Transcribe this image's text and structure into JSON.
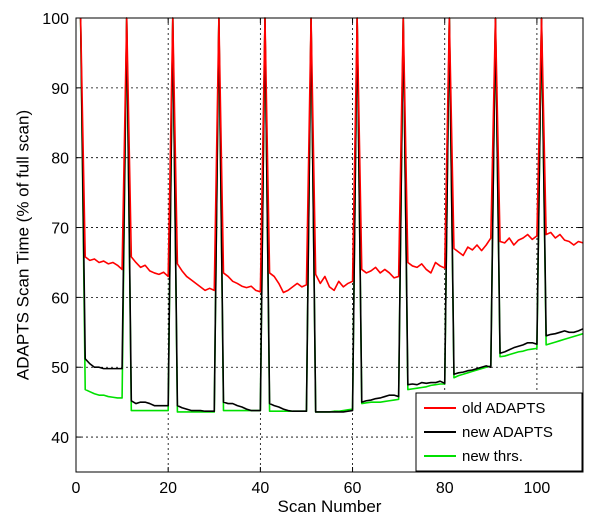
{
  "chart_data": {
    "type": "line",
    "xlabel": "Scan Number",
    "ylabel": "ADAPTS Scan Time (% of full scan)",
    "xlim": [
      0,
      110
    ],
    "ylim": [
      35,
      100
    ],
    "xticks": [
      0,
      20,
      40,
      60,
      80,
      100
    ],
    "yticks": [
      40,
      50,
      60,
      70,
      80,
      90,
      100
    ],
    "grid": true,
    "legend_position": "bottom-right",
    "full_scan_positions": [
      1,
      11,
      21,
      31,
      41,
      51,
      61,
      71,
      81,
      91,
      101
    ],
    "series": [
      {
        "name": "old ADAPTS",
        "color": "#ff0000",
        "x": [
          1,
          2,
          3,
          4,
          5,
          6,
          7,
          8,
          9,
          10,
          11,
          12,
          13,
          14,
          15,
          16,
          17,
          18,
          19,
          20,
          21,
          22,
          23,
          24,
          25,
          26,
          27,
          28,
          29,
          30,
          31,
          32,
          33,
          34,
          35,
          36,
          37,
          38,
          39,
          40,
          41,
          42,
          43,
          44,
          45,
          46,
          47,
          48,
          49,
          50,
          51,
          52,
          53,
          54,
          55,
          56,
          57,
          58,
          59,
          60,
          61,
          62,
          63,
          64,
          65,
          66,
          67,
          68,
          69,
          70,
          71,
          72,
          73,
          74,
          75,
          76,
          77,
          78,
          79,
          80,
          81,
          82,
          83,
          84,
          85,
          86,
          87,
          88,
          89,
          90,
          91,
          92,
          93,
          94,
          95,
          96,
          97,
          98,
          99,
          100,
          101,
          102,
          103,
          104,
          105,
          106,
          107,
          108,
          109,
          110
        ],
        "values": [
          100,
          65.8,
          65.3,
          65.5,
          65.0,
          65.2,
          64.8,
          65.0,
          64.6,
          64.0,
          100,
          65.8,
          65.0,
          64.3,
          64.6,
          63.8,
          63.5,
          63.3,
          63.6,
          63.0,
          100,
          64.8,
          63.8,
          63.0,
          62.5,
          62.0,
          61.5,
          61.0,
          61.3,
          61.0,
          100,
          63.5,
          63.0,
          62.3,
          62.0,
          61.6,
          61.4,
          61.6,
          61.0,
          60.8,
          100,
          63.5,
          63.0,
          62.0,
          60.7,
          61.0,
          61.5,
          62.0,
          61.5,
          61.8,
          100,
          63.3,
          62.0,
          63.0,
          61.5,
          61.0,
          62.3,
          61.5,
          62.0,
          62.3,
          100,
          64.0,
          63.5,
          63.8,
          64.3,
          63.5,
          64.0,
          63.5,
          62.8,
          63.0,
          100,
          65.0,
          64.5,
          64.3,
          64.8,
          64.0,
          63.5,
          65.0,
          64.5,
          64.2,
          100,
          67.0,
          66.5,
          66.0,
          67.2,
          66.8,
          67.5,
          66.7,
          67.5,
          68.5,
          100,
          68.0,
          67.8,
          68.5,
          67.5,
          68.2,
          68.5,
          69.0,
          68.3,
          68.8,
          100,
          69.0,
          69.3,
          68.5,
          69.0,
          68.2,
          68.0,
          67.5,
          68.0,
          67.8
        ]
      },
      {
        "name": "new ADAPTS",
        "color": "#000000",
        "x": [
          1,
          2,
          3,
          4,
          5,
          6,
          7,
          8,
          9,
          10,
          11,
          12,
          13,
          14,
          15,
          16,
          17,
          18,
          19,
          20,
          21,
          22,
          23,
          24,
          25,
          26,
          27,
          28,
          29,
          30,
          31,
          32,
          33,
          34,
          35,
          36,
          37,
          38,
          39,
          40,
          41,
          42,
          43,
          44,
          45,
          46,
          47,
          48,
          49,
          50,
          51,
          52,
          53,
          54,
          55,
          56,
          57,
          58,
          59,
          60,
          61,
          62,
          63,
          64,
          65,
          66,
          67,
          68,
          69,
          70,
          71,
          72,
          73,
          74,
          75,
          76,
          77,
          78,
          79,
          80,
          81,
          82,
          83,
          84,
          85,
          86,
          87,
          88,
          89,
          90,
          91,
          92,
          93,
          94,
          95,
          96,
          97,
          98,
          99,
          100,
          101,
          102,
          103,
          104,
          105,
          106,
          107,
          108,
          109,
          110
        ],
        "values": [
          100,
          51.2,
          50.5,
          50.0,
          50.0,
          49.8,
          49.8,
          49.8,
          49.8,
          49.8,
          100,
          45.2,
          44.8,
          45.0,
          45.0,
          44.8,
          44.5,
          44.5,
          44.5,
          44.5,
          100,
          44.5,
          44.2,
          44.0,
          43.8,
          43.8,
          43.8,
          43.7,
          43.7,
          43.7,
          100,
          45.0,
          44.8,
          44.8,
          44.5,
          44.3,
          44.0,
          43.8,
          43.8,
          43.8,
          100,
          44.8,
          44.5,
          44.3,
          44.0,
          43.8,
          43.7,
          43.7,
          43.7,
          43.7,
          100,
          43.6,
          43.6,
          43.6,
          43.6,
          43.6,
          43.6,
          43.6,
          43.7,
          43.8,
          100,
          45.0,
          45.2,
          45.3,
          45.5,
          45.6,
          45.8,
          46.0,
          46.0,
          45.8,
          100,
          47.5,
          47.6,
          47.5,
          47.8,
          47.7,
          47.8,
          47.8,
          48.0,
          47.7,
          100,
          49.0,
          49.2,
          49.3,
          49.5,
          49.6,
          49.8,
          50.0,
          50.2,
          50.0,
          100,
          52.0,
          52.2,
          52.5,
          52.8,
          53.0,
          53.2,
          53.5,
          53.5,
          53.3,
          100,
          54.5,
          54.7,
          54.8,
          55.0,
          55.2,
          55.0,
          55.0,
          55.2,
          55.5
        ]
      },
      {
        "name": "new thrs.",
        "color": "#00e000",
        "x": [
          1,
          2,
          3,
          4,
          5,
          6,
          7,
          8,
          9,
          10,
          11,
          12,
          13,
          14,
          15,
          16,
          17,
          18,
          19,
          20,
          21,
          22,
          23,
          24,
          25,
          26,
          27,
          28,
          29,
          30,
          31,
          32,
          33,
          34,
          35,
          36,
          37,
          38,
          39,
          40,
          41,
          42,
          43,
          44,
          45,
          46,
          47,
          48,
          49,
          50,
          51,
          52,
          53,
          54,
          55,
          56,
          57,
          58,
          59,
          60,
          61,
          62,
          63,
          64,
          65,
          66,
          67,
          68,
          69,
          70,
          71,
          72,
          73,
          74,
          75,
          76,
          77,
          78,
          79,
          80,
          81,
          82,
          83,
          84,
          85,
          86,
          87,
          88,
          89,
          90,
          91,
          92,
          93,
          94,
          95,
          96,
          97,
          98,
          99,
          100,
          101,
          102,
          103,
          104,
          105,
          106,
          107,
          108,
          109,
          110
        ],
        "values": [
          100,
          46.8,
          46.5,
          46.2,
          46.0,
          46.0,
          45.8,
          45.7,
          45.6,
          45.6,
          100,
          43.8,
          43.8,
          43.8,
          43.8,
          43.8,
          43.8,
          43.8,
          43.8,
          43.8,
          100,
          43.6,
          43.6,
          43.6,
          43.6,
          43.6,
          43.6,
          43.6,
          43.6,
          43.6,
          100,
          43.8,
          43.8,
          43.8,
          43.8,
          43.8,
          43.8,
          43.8,
          43.8,
          43.8,
          100,
          43.7,
          43.7,
          43.7,
          43.7,
          43.7,
          43.7,
          43.7,
          43.7,
          43.7,
          100,
          43.6,
          43.6,
          43.6,
          43.6,
          43.7,
          43.7,
          43.8,
          43.9,
          44.0,
          100,
          44.8,
          44.9,
          45.0,
          45.0,
          45.0,
          45.1,
          45.2,
          45.3,
          45.4,
          100,
          46.8,
          46.9,
          47.0,
          47.1,
          47.2,
          47.4,
          47.5,
          47.6,
          47.6,
          100,
          48.5,
          48.8,
          49.0,
          49.2,
          49.4,
          49.6,
          49.8,
          50.0,
          50.2,
          100,
          51.5,
          51.6,
          51.8,
          52.0,
          52.2,
          52.3,
          52.5,
          52.6,
          52.7,
          100,
          53.2,
          53.4,
          53.6,
          53.8,
          54.0,
          54.2,
          54.4,
          54.6,
          54.8
        ]
      }
    ]
  }
}
